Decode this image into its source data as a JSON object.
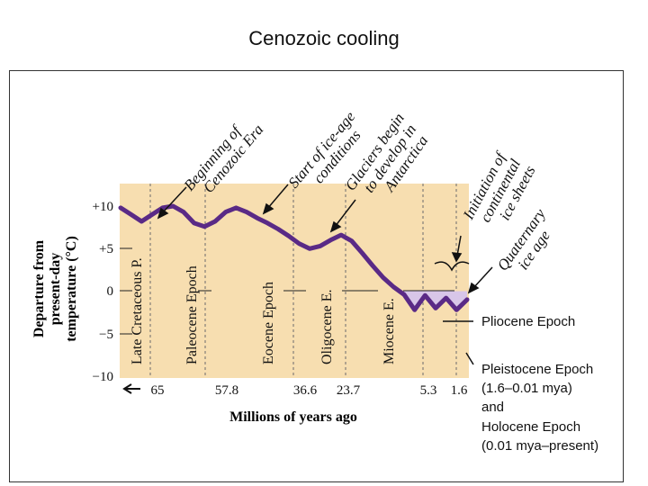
{
  "slide": {
    "title": "Cenozoic cooling"
  },
  "chart_data": {
    "type": "line",
    "title": "",
    "xlabel": "Millions of years ago",
    "ylabel_lines": [
      "Departure from",
      "present-day",
      "temperature (°C)"
    ],
    "ylim": [
      -10,
      10
    ],
    "y_ticks": [
      "+10",
      "+5",
      "0",
      "−5",
      "−10"
    ],
    "x_ticks": [
      "65",
      "57.8",
      "36.6",
      "23.7",
      "5.3",
      "1.6"
    ],
    "epochs": [
      "Late Cretaceous P.",
      "Paleocene Epoch",
      "Eocene Epoch",
      "Oligocene E.",
      "Miocene E."
    ],
    "annotations": [
      [
        "Beginning of",
        "Cenozoic Era"
      ],
      [
        "Start of ice-age",
        "conditions"
      ],
      [
        "Glaciers begin",
        "to develop in",
        "Antarctica"
      ],
      [
        "Initiation of",
        "continental",
        "ice sheets"
      ],
      [
        "Quaternary",
        "ice age"
      ]
    ],
    "legend": {
      "pliocene": "Pliocene Epoch",
      "pleistocene": [
        "Pleistocene Epoch",
        "(1.6–0.01 mya)",
        "and",
        "Holocene Epoch",
        "(0.01 mya–present)"
      ]
    },
    "series": [
      {
        "values": [
          9.8,
          9.0,
          8.2,
          9.0,
          9.8,
          10.0,
          9.3,
          8.0,
          7.6,
          8.2,
          9.3,
          9.8,
          9.3,
          8.6,
          8.0,
          7.3,
          6.5,
          5.6,
          5.0,
          5.3,
          6.0,
          6.6,
          5.9,
          4.5,
          3.0,
          1.6,
          0.5,
          -0.4,
          -2.2,
          -0.5,
          -2.0,
          -0.8,
          -2.2,
          -1.0
        ]
      }
    ],
    "colors": {
      "background": "#f7deb0",
      "line": "#5a2a86",
      "ice_fill": "#d8c6e8"
    }
  }
}
